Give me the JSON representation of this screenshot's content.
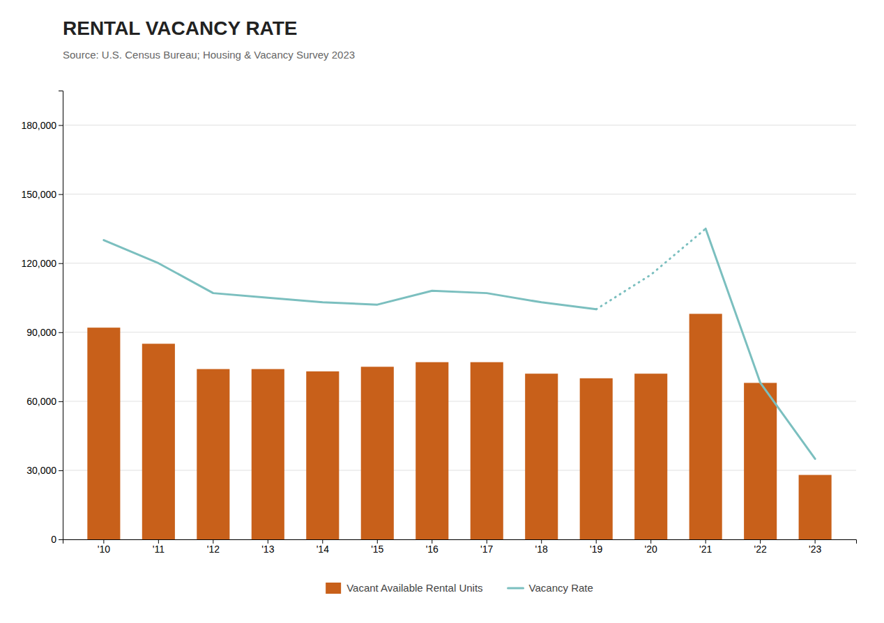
{
  "chart_data": {
    "type": "bar",
    "title": "RENTAL VACANCY RATE",
    "subtitle": "Source: U.S. Census Bureau; Housing & Vacancy Survey 2023",
    "categories": [
      "'10",
      "'11",
      "'12",
      "'13",
      "'14",
      "'15",
      "'16",
      "'17",
      "'18",
      "'19",
      "'20",
      "'21",
      "'22",
      "'23"
    ],
    "series": [
      {
        "name": "Vacant Available Rental Units",
        "type": "bar",
        "color": "#C8601A",
        "values": [
          92000,
          85000,
          74000,
          74000,
          73000,
          75000,
          77000,
          77000,
          72000,
          70000,
          72000,
          98000,
          68000,
          28000
        ]
      },
      {
        "name": "Vacancy Rate",
        "type": "line",
        "color": "#7BBFBF",
        "line_style": "solid",
        "values": [
          130000,
          120000,
          107000,
          105000,
          103000,
          102000,
          108000,
          107000,
          103000,
          100000,
          null,
          135000,
          68000,
          35000
        ]
      },
      {
        "type": "line",
        "color": "#7BBFBF",
        "line_style": "dotted",
        "values": [
          null,
          null,
          null,
          null,
          null,
          null,
          null,
          null,
          null,
          100000,
          115000,
          135000,
          null,
          null
        ]
      }
    ],
    "ylim": [
      0,
      195000
    ],
    "yticks": [
      0,
      {
        "value": 30000,
        "label": "30,000"
      },
      {
        "value": 60000,
        "label": "60,000"
      },
      {
        "value": 90000,
        "label": "90,000"
      },
      {
        "value": 120000,
        "label": "120,000"
      },
      {
        "value": 150000,
        "label": "150,000"
      },
      {
        "value": 180000,
        "label": "180,000"
      }
    ],
    "grid": true,
    "legend": "bottom"
  }
}
